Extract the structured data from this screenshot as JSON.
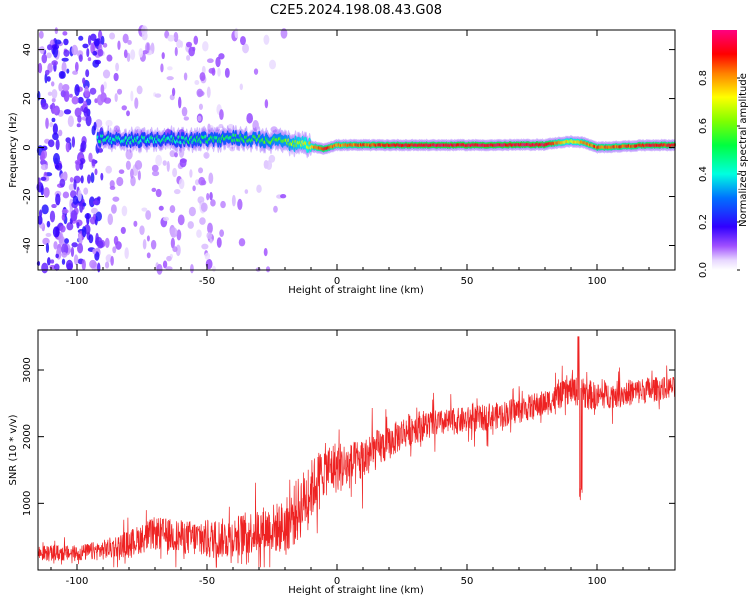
{
  "title": "C2E5.2024.198.08.43.G08",
  "colors": {
    "snr_line": "#ee2222",
    "axis": "#000000",
    "background": "#ffffff"
  },
  "chart_data": [
    {
      "type": "heatmap",
      "xlabel": "Height of straight line (km)",
      "ylabel": "Frequency (Hz)",
      "xlim": [
        -115,
        130
      ],
      "ylim": [
        -50,
        48
      ],
      "xticks": [
        -100,
        -50,
        0,
        50,
        100
      ],
      "yticks": [
        -40,
        -20,
        0,
        20,
        40
      ],
      "colorbar": {
        "label": "Normalized spectral amplitude",
        "range": [
          0,
          1
        ],
        "ticks": [
          "0.0",
          "0.2",
          "0.4",
          "0.6",
          "0.8"
        ],
        "colormap": "gist_rainbow_r"
      },
      "ridge": [
        {
          "x": -90,
          "f": 3.5,
          "amp": 0.45
        },
        {
          "x": -80,
          "f": 3.0,
          "amp": 0.45
        },
        {
          "x": -70,
          "f": 3.5,
          "amp": 0.45
        },
        {
          "x": -60,
          "f": 3.0,
          "amp": 0.45
        },
        {
          "x": -50,
          "f": 3.5,
          "amp": 0.5
        },
        {
          "x": -40,
          "f": 4.0,
          "amp": 0.5
        },
        {
          "x": -30,
          "f": 3.5,
          "amp": 0.55
        },
        {
          "x": -20,
          "f": 2.5,
          "amp": 0.6
        },
        {
          "x": -10,
          "f": 0.5,
          "amp": 0.75
        },
        {
          "x": -5,
          "f": -0.5,
          "amp": 0.9
        },
        {
          "x": 0,
          "f": 1.0,
          "amp": 0.8
        },
        {
          "x": 10,
          "f": 1.0,
          "amp": 0.85
        },
        {
          "x": 20,
          "f": 1.0,
          "amp": 0.9
        },
        {
          "x": 40,
          "f": 1.0,
          "amp": 0.95
        },
        {
          "x": 60,
          "f": 1.0,
          "amp": 0.95
        },
        {
          "x": 80,
          "f": 1.2,
          "amp": 0.95
        },
        {
          "x": 85,
          "f": 2.0,
          "amp": 0.8
        },
        {
          "x": 90,
          "f": 2.5,
          "amp": 0.7
        },
        {
          "x": 95,
          "f": 2.0,
          "amp": 0.8
        },
        {
          "x": 100,
          "f": 0.0,
          "amp": 0.85
        },
        {
          "x": 110,
          "f": 0.5,
          "amp": 0.85
        },
        {
          "x": 120,
          "f": 1.0,
          "amp": 0.9
        },
        {
          "x": 130,
          "f": 1.0,
          "amp": 0.9
        }
      ]
    },
    {
      "type": "line",
      "xlabel": "Height of straight line (km)",
      "ylabel": "SNR (10 * v/v)",
      "xlim": [
        -115,
        130
      ],
      "ylim": [
        0,
        3600
      ],
      "xticks": [
        -100,
        -50,
        0,
        50,
        100
      ],
      "yticks": [
        1000,
        2000,
        3000
      ],
      "series": [
        {
          "name": "SNR",
          "x": [
            -115,
            -100,
            -90,
            -80,
            -70,
            -60,
            -50,
            -40,
            -30,
            -20,
            -15,
            -10,
            -5,
            0,
            5,
            10,
            15,
            20,
            25,
            30,
            40,
            50,
            60,
            70,
            80,
            90,
            95,
            100,
            110,
            120,
            130
          ],
          "y": [
            250,
            250,
            300,
            400,
            550,
            500,
            450,
            500,
            600,
            650,
            900,
            1200,
            1500,
            1550,
            1550,
            1650,
            1800,
            1900,
            2050,
            2150,
            2200,
            2250,
            2300,
            2400,
            2500,
            2700,
            2650,
            2600,
            2650,
            2700,
            2750
          ],
          "noise": [
            120,
            120,
            150,
            200,
            250,
            250,
            300,
            300,
            350,
            400,
            500,
            450,
            400,
            400,
            350,
            350,
            300,
            250,
            250,
            250,
            200,
            200,
            200,
            200,
            200,
            200,
            250,
            200,
            200,
            200,
            150
          ]
        }
      ],
      "annotations": [
        {
          "x": 94,
          "y": 1000,
          "text": ""
        },
        {
          "x": 93,
          "y": 3600,
          "text": ""
        }
      ]
    }
  ]
}
